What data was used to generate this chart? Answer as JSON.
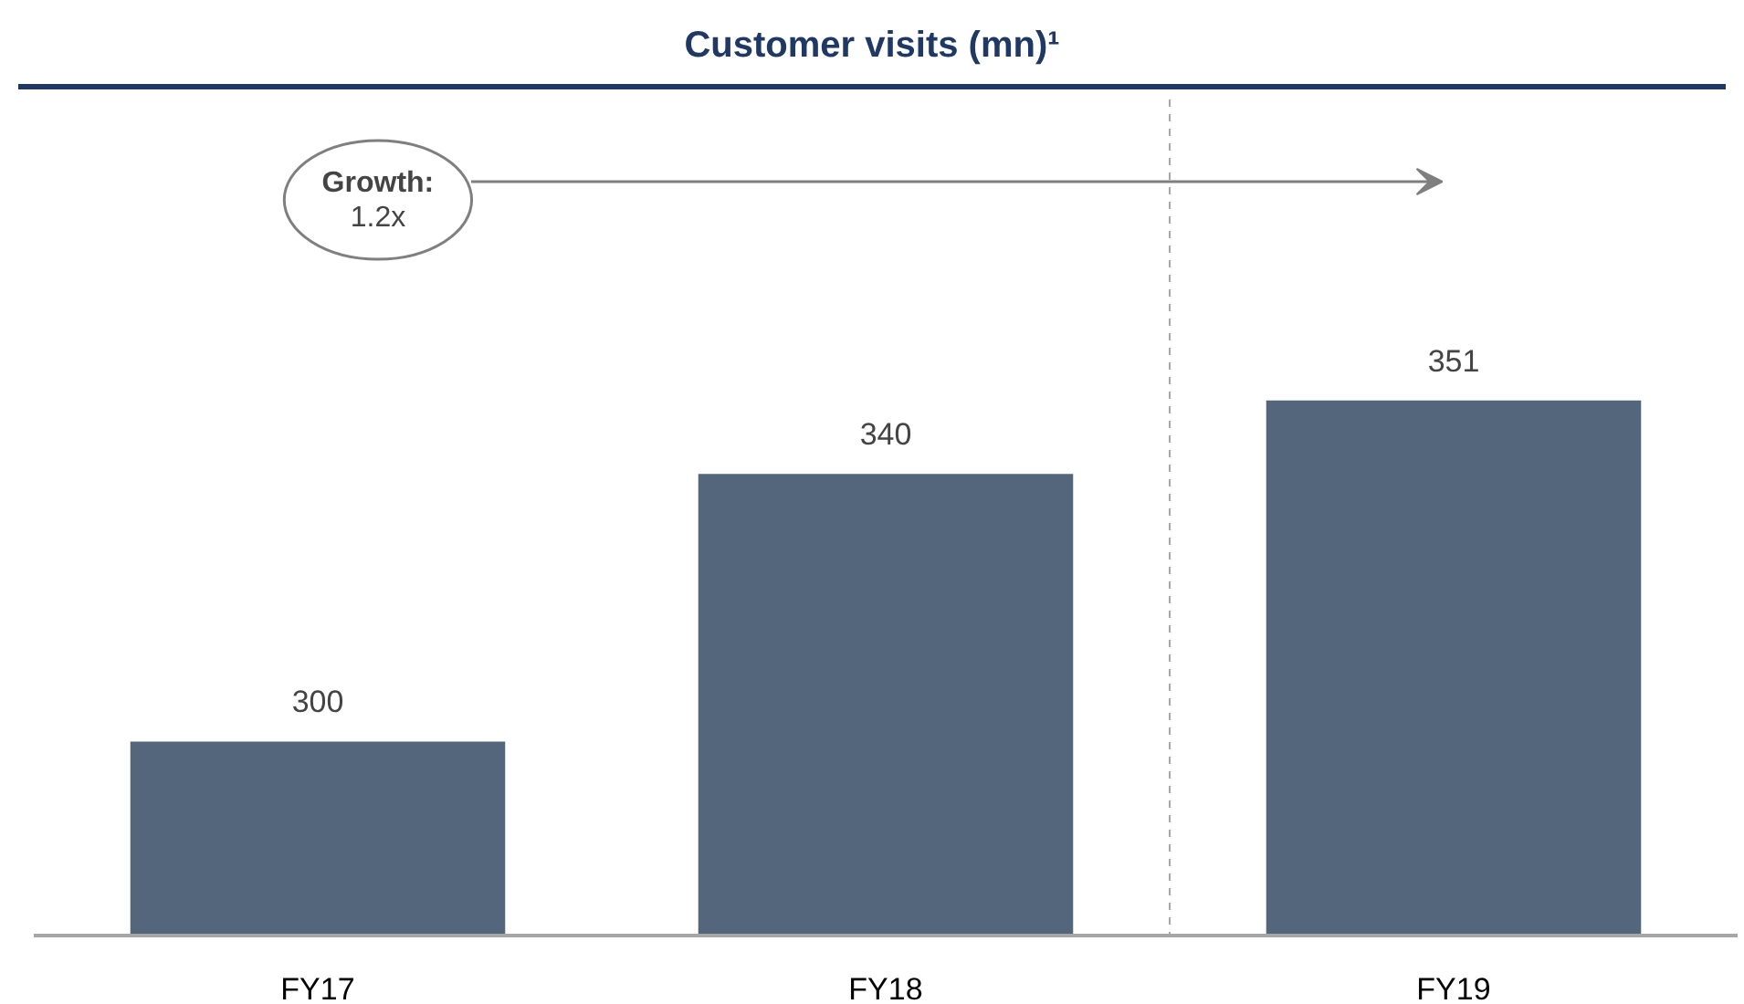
{
  "chart_data": {
    "type": "bar",
    "title": "Customer visits (mn)¹",
    "categories": [
      "FY17",
      "FY18",
      "FY19"
    ],
    "values": [
      300,
      340,
      351
    ],
    "color": "#54667b",
    "data_labels": true,
    "ylim": [
      271,
      396
    ],
    "grid": false,
    "annotations": [
      "Growth:\n1.2x"
    ]
  }
}
